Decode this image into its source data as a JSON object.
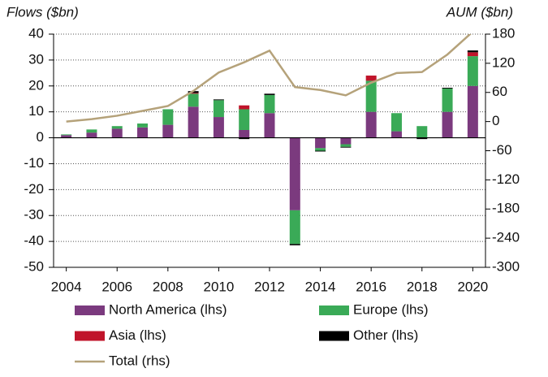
{
  "chart_data": {
    "type": "bar",
    "stacked": true,
    "ylabel": "Flows ($bn)",
    "y2label": "AUM ($bn)",
    "categories": [
      "2004",
      null,
      "2006",
      null,
      "2008",
      null,
      "2010",
      null,
      "2012",
      null,
      "2014",
      null,
      "2016",
      null,
      "2018",
      null,
      "2020"
    ],
    "ylim": [
      -50,
      40
    ],
    "yticks": [
      40,
      30,
      20,
      10,
      0,
      -10,
      -20,
      -30,
      -40,
      -50
    ],
    "y2lim": [
      -300,
      180
    ],
    "y2ticks": [
      180,
      120,
      60,
      0,
      -60,
      -120,
      -180,
      -240,
      -300
    ],
    "grid": true,
    "series": [
      {
        "name": "North America (lhs)",
        "color": "#7b3a7e",
        "values": [
          1,
          2,
          3.5,
          4,
          5,
          12,
          8,
          3,
          9.5,
          -28,
          -4,
          -2.5,
          10,
          2.5,
          0,
          10,
          20
        ]
      },
      {
        "name": "Europe (lhs)",
        "color": "#3aaa57",
        "values": [
          0.3,
          1.2,
          1,
          1.5,
          6,
          5,
          6.5,
          8,
          7,
          -13,
          -1,
          -1,
          12,
          7,
          4.5,
          9,
          11.5
        ]
      },
      {
        "name": "Asia (lhs)",
        "color": "#c0142a",
        "values": [
          0,
          0,
          0,
          0,
          0,
          0.3,
          0,
          1.5,
          0,
          0,
          0,
          0,
          2,
          0,
          0,
          0,
          1.5
        ]
      },
      {
        "name": "Other (lhs)",
        "color": "#000000",
        "values": [
          0,
          0,
          0,
          0,
          0,
          0.7,
          0.3,
          -0.5,
          0.5,
          -0.5,
          -0.3,
          -0.3,
          0,
          0,
          -0.5,
          0.3,
          0.7
        ]
      },
      {
        "name": "Total (rhs)",
        "color": "#b5a27a",
        "type": "line",
        "axis": "y2",
        "values": [
          0,
          5,
          12,
          22,
          32,
          63,
          101,
          122,
          146,
          71,
          65,
          54,
          80,
          100,
          102,
          138,
          185
        ]
      }
    ]
  }
}
